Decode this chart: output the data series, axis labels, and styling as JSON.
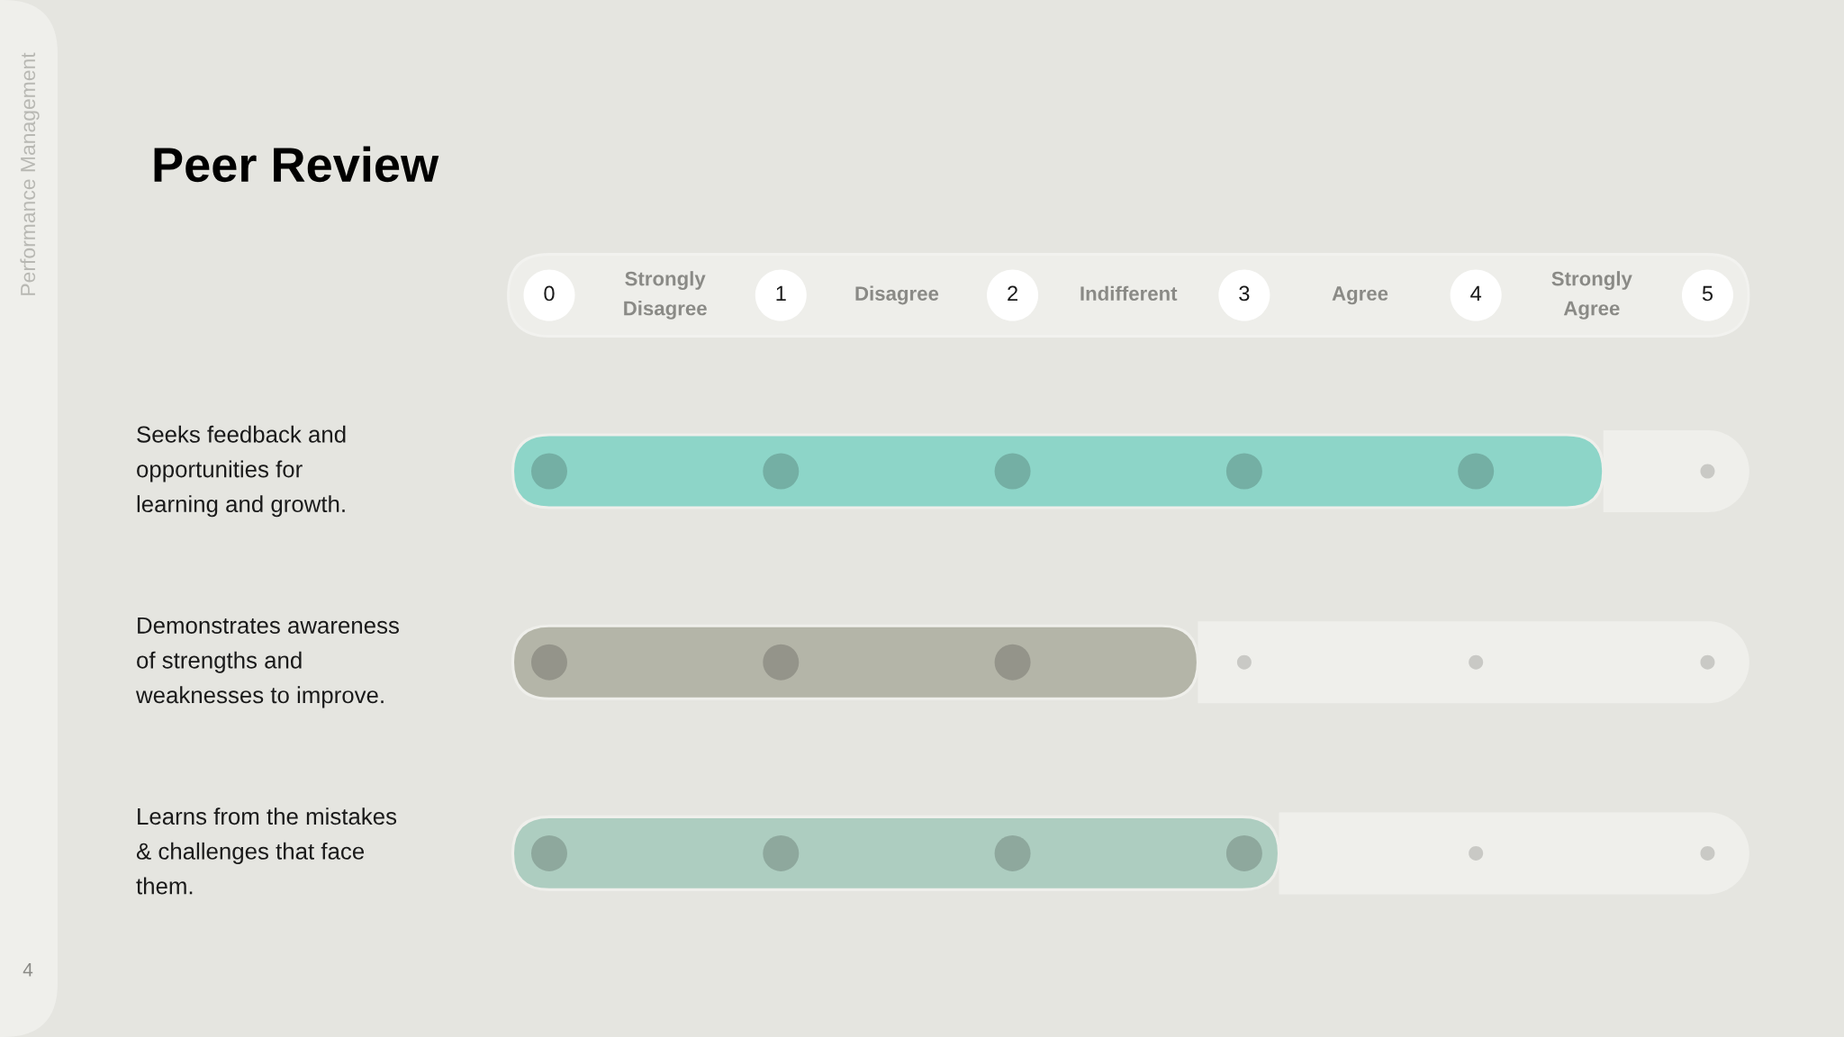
{
  "chart_data": {
    "type": "bar",
    "orientation": "horizontal",
    "stacked": true,
    "title": "Peer Review",
    "categories": [
      "Seeks feedback and\nopportunities for\nlearning and growth.",
      "Demonstrates awareness\nof strengths and\nweaknesses to improve.",
      "Learns from the mistakes\n& challenges that face\nthem."
    ],
    "series": [
      {
        "colors": [
          "#8dd5c8",
          "#b4b5a8",
          "#adcdc0"
        ],
        "values": [
          4.55,
          2.8,
          3.15
        ]
      },
      {
        "color": "#efefeb",
        "values": [
          0.63,
          2.38,
          2.03
        ]
      }
    ],
    "xlim": [
      0,
      5.18
    ],
    "xticks": [
      0,
      {
        "value": 0.5,
        "label": "Strongly\nDisagree"
      },
      1,
      {
        "value": 1.5,
        "label": "Disagree"
      },
      2,
      {
        "value": 2.5,
        "label": "Indifferent"
      },
      3,
      {
        "value": 3.5,
        "label": "Agree"
      },
      4,
      {
        "value": 4.5,
        "label": "Strongly\nAgree"
      },
      5
    ],
    "annotations": [
      "Performance Management",
      "4"
    ]
  }
}
